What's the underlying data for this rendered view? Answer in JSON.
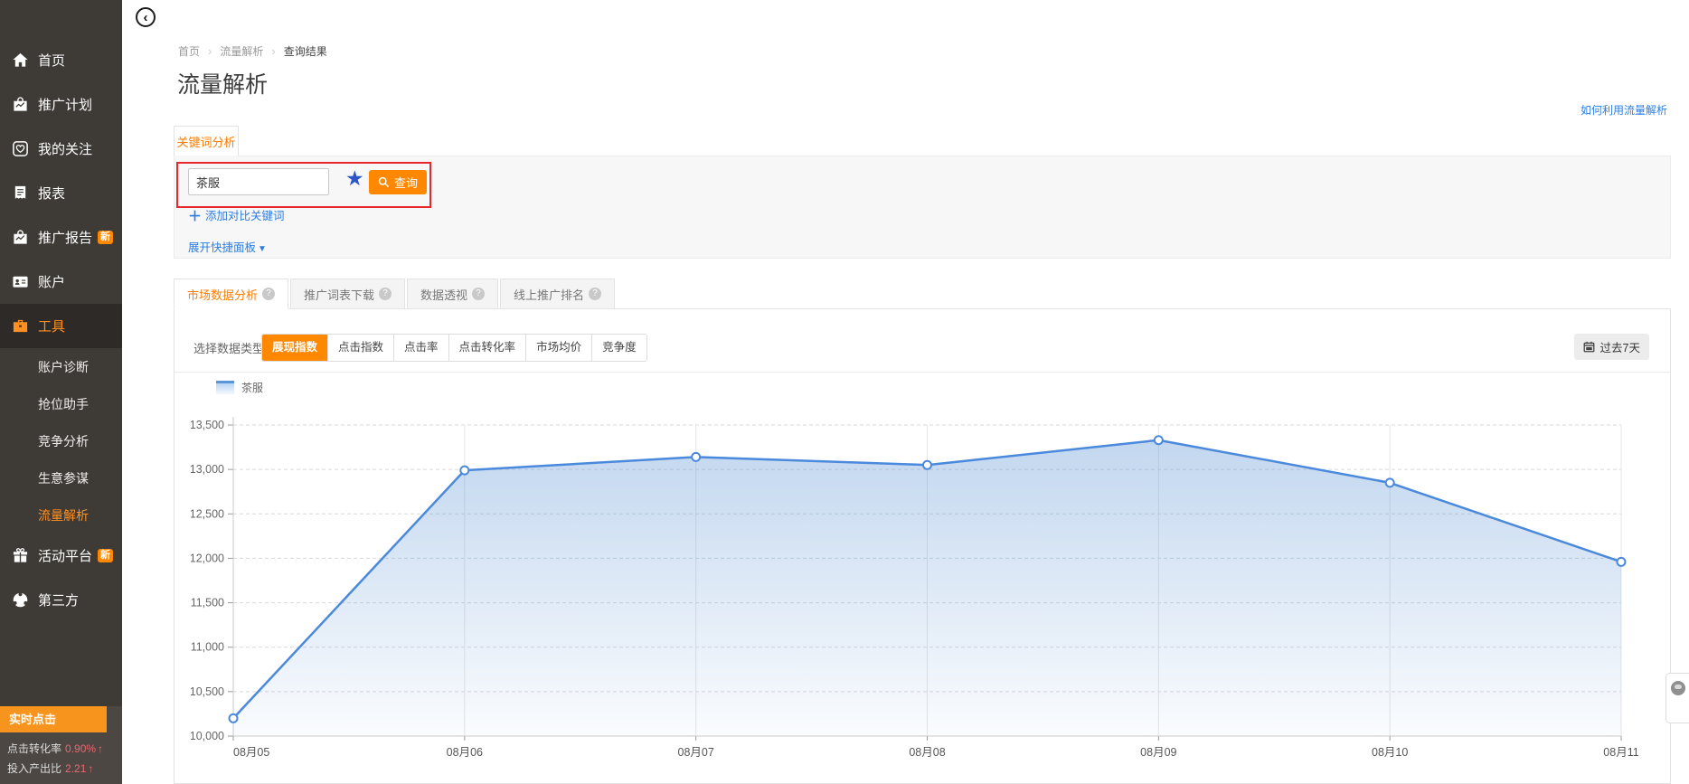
{
  "icons": {
    "star": "★",
    "plus": "＋",
    "caret_down": "▼",
    "collapse": "‹",
    "breadcrumb_sep": "›"
  },
  "sidebar": {
    "items": [
      {
        "key": "home",
        "label": "首页",
        "icon": "home-icon"
      },
      {
        "key": "campaigns",
        "label": "推广计划",
        "icon": "campaign-icon"
      },
      {
        "key": "favorites",
        "label": "我的关注",
        "icon": "favorites-icon"
      },
      {
        "key": "reports",
        "label": "报表",
        "icon": "report-icon"
      },
      {
        "key": "promo-reports",
        "label": "推广报告",
        "icon": "promo-report-icon",
        "badge": "新"
      },
      {
        "key": "account",
        "label": "账户",
        "icon": "account-icon"
      },
      {
        "key": "tools",
        "label": "工具",
        "icon": "tools-icon",
        "active": true
      },
      {
        "key": "account-diagnosis",
        "label": "账户诊断",
        "sub": true
      },
      {
        "key": "rank-assistant",
        "label": "抢位助手",
        "sub": true
      },
      {
        "key": "competition-analysis",
        "label": "竞争分析",
        "sub": true
      },
      {
        "key": "business-advisor",
        "label": "生意参谋",
        "sub": true
      },
      {
        "key": "traffic-analysis",
        "label": "流量解析",
        "sub": true,
        "active": true
      },
      {
        "key": "activity-platform",
        "label": "活动平台",
        "icon": "activity-icon",
        "badge": "新"
      },
      {
        "key": "third-party",
        "label": "第三方",
        "icon": "thirdparty-icon"
      }
    ],
    "realtime": {
      "header": "实时点击",
      "stats": [
        {
          "label": "点击转化率",
          "value": "0.90%",
          "arrow": "↑"
        },
        {
          "label": "投入产出比",
          "value": "2.21",
          "arrow": "↑"
        }
      ]
    }
  },
  "breadcrumb": [
    "首页",
    "流量解析",
    "查询结果"
  ],
  "page_title": "流量解析",
  "help_link": "如何利用流量解析",
  "keyword_tab": "关键词分析",
  "search": {
    "value": "茶服",
    "query_button": "查询",
    "add_compare": "添加对比关键词",
    "expand_panel": "展开快捷面板"
  },
  "tabs": [
    {
      "key": "market-data-analysis",
      "label": "市场数据分析",
      "active": true
    },
    {
      "key": "promo-wordlist-download",
      "label": "推广词表下载"
    },
    {
      "key": "data-pivot",
      "label": "数据透视"
    },
    {
      "key": "online-promo-ranking",
      "label": "线上推广排名"
    }
  ],
  "data_type": {
    "label": "选择数据类型：",
    "options": [
      {
        "key": "impression-index",
        "label": "展现指数",
        "active": true
      },
      {
        "key": "click-index",
        "label": "点击指数"
      },
      {
        "key": "ctr",
        "label": "点击率"
      },
      {
        "key": "cvr",
        "label": "点击转化率"
      },
      {
        "key": "market-avg-price",
        "label": "市场均价"
      },
      {
        "key": "competition",
        "label": "竞争度"
      }
    ]
  },
  "date_range_button": "过去7天",
  "chart_data": {
    "type": "area",
    "title": "",
    "legend": [
      "茶服"
    ],
    "legend_position": "top-left",
    "x": [
      "08月05",
      "08月06",
      "08月07",
      "08月08",
      "08月09",
      "08月10",
      "08月11"
    ],
    "series": [
      {
        "name": "茶服",
        "values": [
          10200,
          12990,
          13140,
          13050,
          13330,
          12850,
          11960
        ]
      }
    ],
    "ylim": [
      10000,
      13500
    ],
    "ytick_step": 500,
    "grid": "horizontal-dashed",
    "line_color": "#4a89dc",
    "colors": {
      "accent": "#ff8800",
      "link": "#2d7de1",
      "annotation": "#e8262d"
    }
  }
}
